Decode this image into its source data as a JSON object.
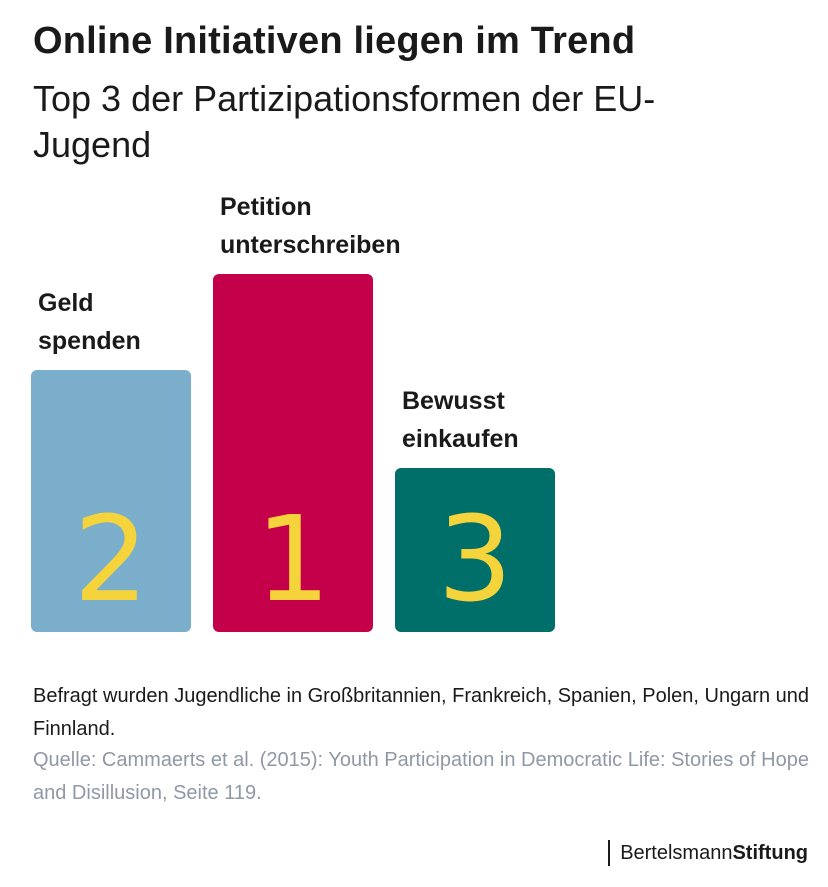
{
  "title": "Online Initiativen liegen im Trend",
  "subtitle": "Top 3 der Partizipationsformen der EU-Jugend",
  "chart_data": {
    "type": "bar",
    "categories": [
      "Geld spenden",
      "Petition unterschreiben",
      "Bewusst einkaufen"
    ],
    "ranks": [
      2,
      1,
      3
    ],
    "title": "Online Initiativen liegen im Trend",
    "subtitle": "Top 3 der Partizipationsformen der EU-Jugend",
    "xlabel": "",
    "ylabel": "",
    "colors": [
      "#7aaecb",
      "#c4004a",
      "#006e69"
    ],
    "rank_color": "#f5d33a"
  },
  "labels": {
    "bar0_line1": "Geld",
    "bar0_line2": "spenden",
    "bar1_line1": "Petition",
    "bar1_line2": "unterschreiben",
    "bar2_line1": "Bewusst",
    "bar2_line2": "einkaufen"
  },
  "footer": {
    "note": "Befragt wurden Jugendliche in Großbritannien, Frankreich, Spanien, Polen, Ungarn und Finnland.",
    "source": "Quelle: Cammaerts et al. (2015): Youth Participation in Democratic Life: Stories of Hope and Disillusion, Seite 119.",
    "logo_part1": "Bertelsmann",
    "logo_part2": "Stiftung"
  }
}
